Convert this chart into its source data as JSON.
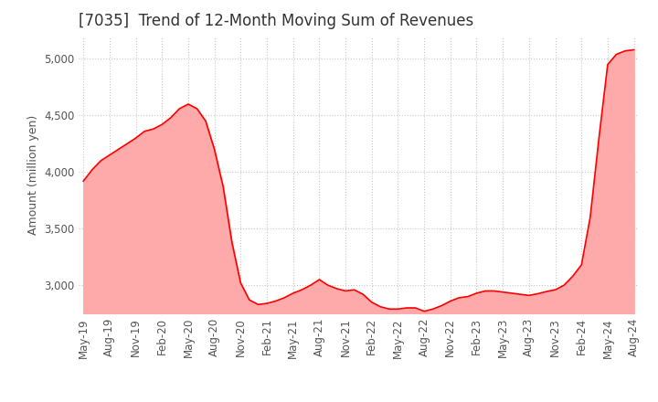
{
  "title": "[7035]  Trend of 12-Month Moving Sum of Revenues",
  "ylabel": "Amount (million yen)",
  "background_color": "#ffffff",
  "grid_color": "#c8c8c8",
  "line_color": "#ff0000",
  "fill_color": "#ffaaaa",
  "ylim": [
    2750,
    5200
  ],
  "yticks": [
    3000,
    3500,
    4000,
    4500,
    5000
  ],
  "values": [
    3920,
    4020,
    4100,
    4150,
    4200,
    4250,
    4300,
    4360,
    4380,
    4420,
    4480,
    4560,
    4600,
    4560,
    4450,
    4200,
    3870,
    3380,
    3020,
    2870,
    2830,
    2840,
    2860,
    2890,
    2930,
    2960,
    3000,
    3050,
    3000,
    2970,
    2950,
    2960,
    2920,
    2850,
    2810,
    2790,
    2790,
    2800,
    2800,
    2770,
    2790,
    2820,
    2860,
    2890,
    2900,
    2930,
    2950,
    2950,
    2940,
    2930,
    2920,
    2910,
    2925,
    2945,
    2960,
    3000,
    3080,
    3180,
    3600,
    4300,
    4950,
    5040,
    5070,
    5080
  ],
  "xtick_labels": [
    "May-19",
    "Aug-19",
    "Nov-19",
    "Feb-20",
    "May-20",
    "Aug-20",
    "Nov-20",
    "Feb-21",
    "May-21",
    "Aug-21",
    "Nov-21",
    "Feb-22",
    "May-22",
    "Aug-22",
    "Nov-22",
    "Feb-23",
    "May-23",
    "Aug-23",
    "Nov-23",
    "Feb-24",
    "May-24",
    "Aug-24"
  ],
  "xtick_positions": [
    0,
    3,
    6,
    9,
    12,
    15,
    18,
    21,
    24,
    27,
    30,
    33,
    36,
    39,
    42,
    45,
    48,
    51,
    54,
    57,
    60,
    63
  ],
  "title_fontsize": 12,
  "axis_fontsize": 9,
  "tick_fontsize": 8.5
}
